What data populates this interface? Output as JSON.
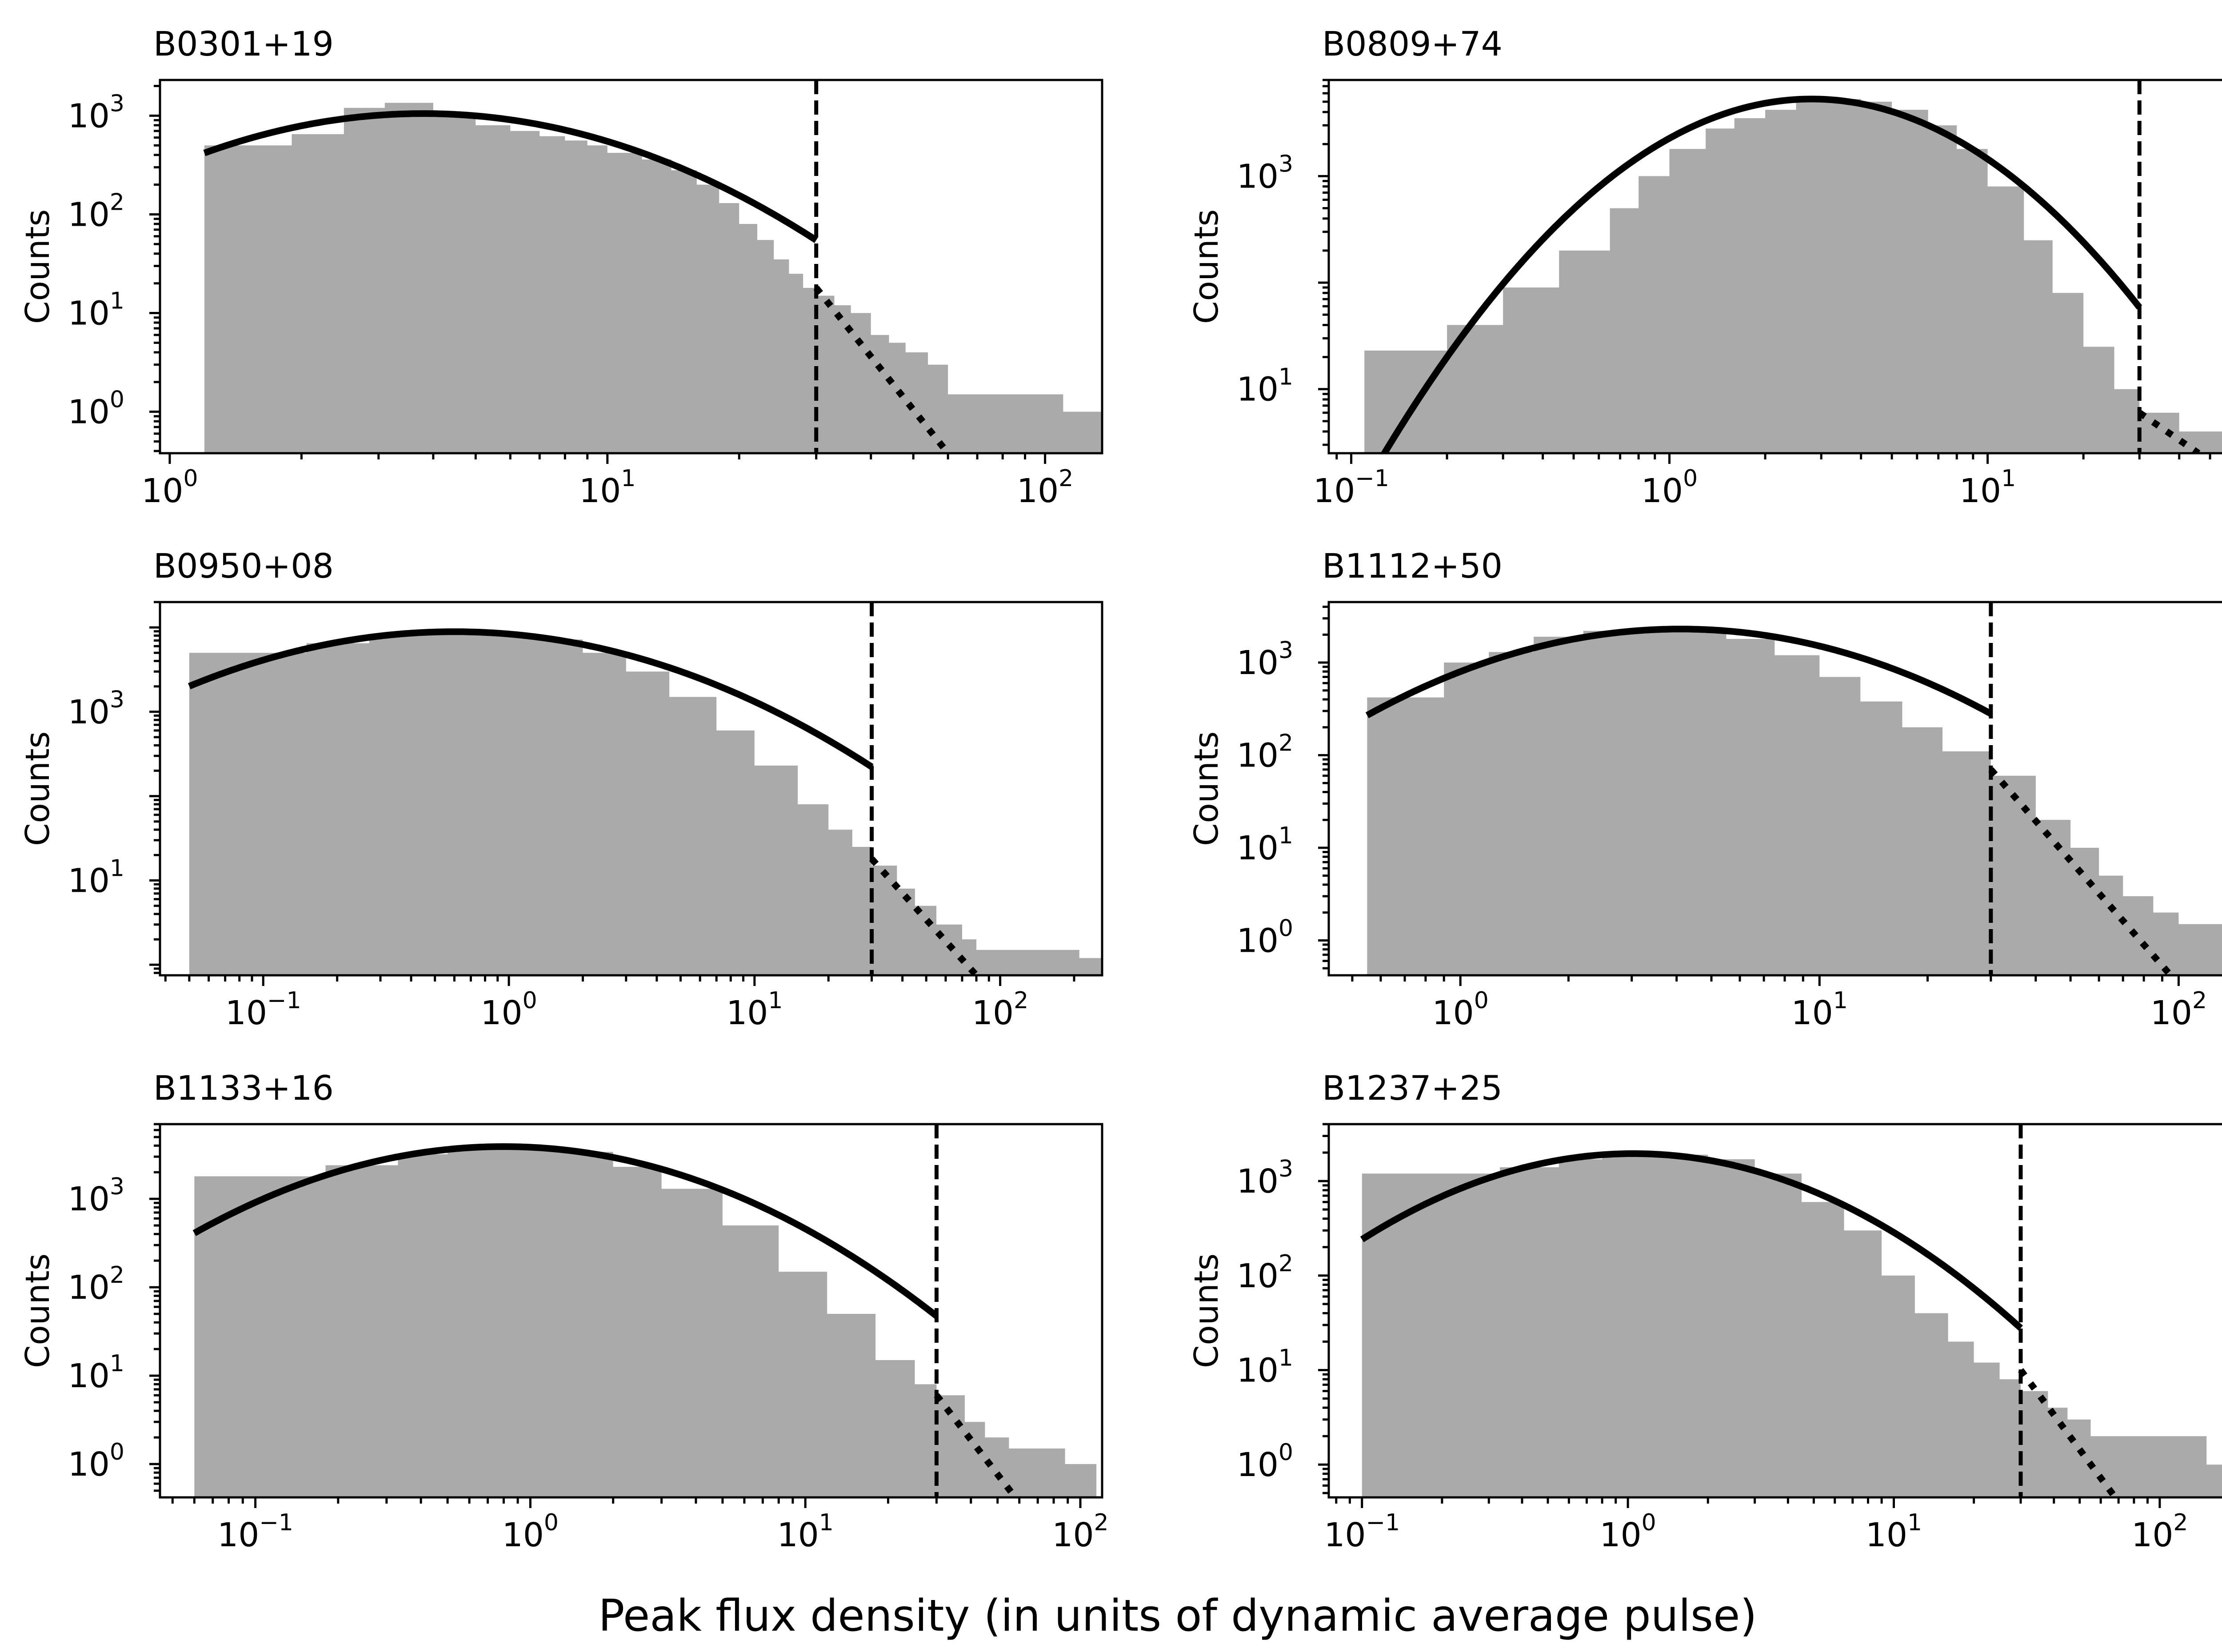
{
  "figure": {
    "xlabel": "Peak flux density (in units of dynamic average pulse)"
  },
  "colors": {
    "histogram": "#aaaaaa",
    "fit": "#000000",
    "threshold": "#000000"
  },
  "chart_data": [
    {
      "type": "histogram",
      "title": "B0301+19",
      "ylabel": "Counts",
      "xscale": "log",
      "yscale": "log",
      "xlim": [
        0.95,
        135
      ],
      "ylim": [
        0.38,
        2300
      ],
      "xticks": [
        1,
        10,
        100
      ],
      "yticks": [
        1,
        10,
        100,
        1000
      ],
      "threshold_x": 30,
      "hist_x": [
        1.2,
        1.9,
        2.5,
        3.1,
        4.0,
        5.0,
        6.0,
        7.0,
        8.0,
        9.0,
        10,
        12,
        14,
        16,
        18,
        20,
        22,
        24,
        26,
        28,
        30,
        33,
        36,
        40,
        44,
        48,
        54,
        60,
        110
      ],
      "hist_y": [
        500,
        650,
        1200,
        1350,
        1000,
        800,
        700,
        620,
        560,
        500,
        420,
        360,
        280,
        200,
        130,
        80,
        55,
        35,
        25,
        18,
        15,
        12,
        10,
        6,
        5,
        4,
        3,
        1.5,
        1
      ],
      "fit_peak_x": 3.8,
      "fit_peak_y": 1050,
      "fit_sigma_ln": 0.85,
      "powerlaw": {
        "x": [
          30,
          60
        ],
        "y": [
          18,
          0.38
        ]
      }
    },
    {
      "type": "histogram",
      "title": "B0809+74",
      "ylabel": "Counts",
      "xscale": "log",
      "yscale": "log",
      "xlim": [
        0.085,
        62
      ],
      "ylim": [
        2.5,
        8000
      ],
      "xticks": [
        0.1,
        1,
        10
      ],
      "yticks": [
        10,
        1000
      ],
      "threshold_x": 30,
      "hist_x": [
        0.11,
        0.2,
        0.3,
        0.45,
        0.65,
        0.8,
        1.0,
        1.3,
        1.6,
        2.0,
        2.5,
        3.0,
        4.0,
        5.0,
        6.5,
        8.0,
        10,
        13,
        16,
        20,
        25,
        30,
        40,
        50
      ],
      "hist_y": [
        23,
        40,
        90,
        200,
        500,
        1000,
        1800,
        2800,
        3500,
        4200,
        5000,
        5300,
        5000,
        4200,
        3000,
        1800,
        800,
        250,
        80,
        25,
        10,
        6,
        4,
        4
      ],
      "fit_peak_x": 2.8,
      "fit_peak_y": 5300,
      "fit_sigma_ln": 0.79,
      "powerlaw": {
        "x": [
          30,
          46
        ],
        "y": [
          6,
          2.5
        ]
      }
    },
    {
      "type": "histogram",
      "title": "B0950+08",
      "ylabel": "Counts",
      "xscale": "log",
      "yscale": "log",
      "xlim": [
        0.038,
        260
      ],
      "ylim": [
        0.75,
        20000
      ],
      "xticks": [
        0.1,
        1,
        10,
        100
      ],
      "yticks": [
        10,
        1000
      ],
      "threshold_x": 30,
      "hist_x": [
        0.05,
        0.15,
        0.27,
        0.4,
        0.6,
        0.9,
        1.3,
        2.0,
        3.0,
        4.5,
        7.0,
        10,
        15,
        20,
        25,
        30,
        38,
        45,
        55,
        70,
        80,
        210
      ],
      "hist_y": [
        5000,
        6500,
        7800,
        8800,
        8800,
        8400,
        7200,
        5000,
        3000,
        1500,
        600,
        230,
        80,
        40,
        25,
        15,
        8,
        5,
        3,
        2,
        1.5,
        1.2
      ],
      "fit_peak_x": 0.6,
      "fit_peak_y": 8900,
      "fit_sigma_ln": 1.44,
      "powerlaw": {
        "x": [
          30,
          80
        ],
        "y": [
          18,
          0.75
        ]
      }
    },
    {
      "type": "histogram",
      "title": "B1112+50",
      "ylabel": "Counts",
      "xscale": "log",
      "yscale": "log",
      "xlim": [
        0.43,
        148
      ],
      "ylim": [
        0.42,
        4500
      ],
      "xticks": [
        1,
        10,
        100
      ],
      "yticks": [
        1,
        10,
        100,
        1000
      ],
      "threshold_x": 30,
      "hist_x": [
        0.55,
        0.9,
        1.2,
        1.6,
        2.2,
        3.0,
        4.0,
        5.5,
        7.5,
        10,
        13,
        17,
        22,
        30,
        40,
        50,
        60,
        70,
        85,
        100,
        125
      ],
      "hist_y": [
        420,
        1000,
        1300,
        1900,
        2200,
        2300,
        2200,
        1800,
        1200,
        700,
        380,
        200,
        110,
        60,
        20,
        10,
        5,
        3,
        2,
        1.5,
        1.5
      ],
      "fit_peak_x": 4.1,
      "fit_peak_y": 2300,
      "fit_sigma_ln": 0.97,
      "powerlaw": {
        "x": [
          30,
          95
        ],
        "y": [
          70,
          0.42
        ]
      }
    },
    {
      "type": "histogram",
      "title": "B1133+16",
      "ylabel": "Counts",
      "xscale": "log",
      "yscale": "log",
      "xlim": [
        0.045,
        120
      ],
      "ylim": [
        0.42,
        7000
      ],
      "xticks": [
        0.1,
        1,
        10,
        100
      ],
      "yticks": [
        1,
        10,
        100,
        1000
      ],
      "threshold_x": 30,
      "hist_x": [
        0.06,
        0.18,
        0.33,
        0.5,
        0.8,
        1.2,
        2.0,
        3.0,
        5.0,
        8.0,
        12,
        18,
        25,
        30,
        38,
        45,
        55,
        88
      ],
      "hist_y": [
        1800,
        2400,
        3200,
        3900,
        3900,
        3400,
        2300,
        1300,
        500,
        150,
        50,
        15,
        8,
        6,
        3,
        2,
        1.5,
        1
      ],
      "fit_peak_x": 0.8,
      "fit_peak_y": 3900,
      "fit_sigma_ln": 1.22,
      "powerlaw": {
        "x": [
          30,
          58
        ],
        "y": [
          6,
          0.42
        ]
      }
    },
    {
      "type": "histogram",
      "title": "B1237+25",
      "ylabel": "Counts",
      "xscale": "log",
      "yscale": "log",
      "xlim": [
        0.075,
        200
      ],
      "ylim": [
        0.45,
        4000
      ],
      "xticks": [
        0.1,
        1,
        10,
        100
      ],
      "yticks": [
        1,
        10,
        100,
        1000
      ],
      "threshold_x": 30,
      "hist_x": [
        0.1,
        0.33,
        0.55,
        0.8,
        1.1,
        1.5,
        2.0,
        3.0,
        4.5,
        6.5,
        9.0,
        12,
        16,
        20,
        25,
        30,
        38,
        45,
        55,
        150
      ],
      "hist_y": [
        1200,
        1400,
        1700,
        1900,
        1950,
        1900,
        1700,
        1200,
        600,
        300,
        100,
        40,
        20,
        12,
        8,
        6,
        4,
        3,
        2,
        1
      ],
      "fit_peak_x": 1.05,
      "fit_peak_y": 1950,
      "fit_sigma_ln": 1.15,
      "powerlaw": {
        "x": [
          30,
          68
        ],
        "y": [
          10,
          0.45
        ]
      }
    }
  ]
}
